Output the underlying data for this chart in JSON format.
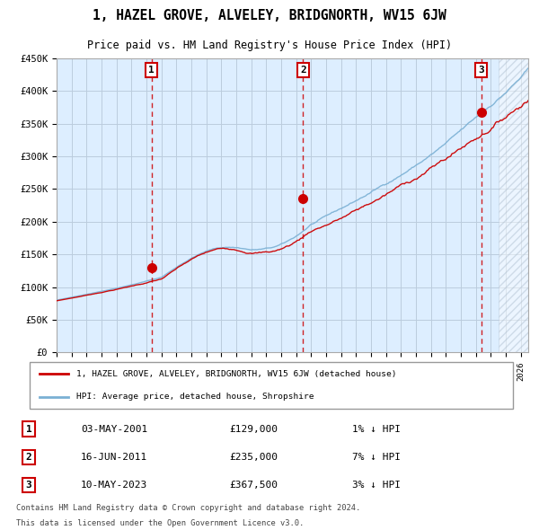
{
  "title": "1, HAZEL GROVE, ALVELEY, BRIDGNORTH, WV15 6JW",
  "subtitle": "Price paid vs. HM Land Registry's House Price Index (HPI)",
  "x_start_year": 1995,
  "x_end_year": 2026.5,
  "y_min": 0,
  "y_max": 450000,
  "y_ticks": [
    0,
    50000,
    100000,
    150000,
    200000,
    250000,
    300000,
    350000,
    400000,
    450000
  ],
  "y_tick_labels": [
    "£0",
    "£50K",
    "£100K",
    "£150K",
    "£200K",
    "£250K",
    "£300K",
    "£350K",
    "£400K",
    "£450K"
  ],
  "transactions": [
    {
      "label": "1",
      "date": "03-MAY-2001",
      "year": 2001.34,
      "price": 129000,
      "pct": "1%",
      "dir": "↓"
    },
    {
      "label": "2",
      "date": "16-JUN-2011",
      "year": 2011.46,
      "price": 235000,
      "pct": "7%",
      "dir": "↓"
    },
    {
      "label": "3",
      "date": "10-MAY-2023",
      "year": 2023.36,
      "price": 367500,
      "pct": "3%",
      "dir": "↓"
    }
  ],
  "legend_line1": "1, HAZEL GROVE, ALVELEY, BRIDGNORTH, WV15 6JW (detached house)",
  "legend_line2": "HPI: Average price, detached house, Shropshire",
  "footer1": "Contains HM Land Registry data © Crown copyright and database right 2024.",
  "footer2": "This data is licensed under the Open Government Licence v3.0.",
  "line_color_red": "#cc0000",
  "line_color_blue": "#7ab0d4",
  "bg_color": "#ddeeff",
  "hatch_color": "#aabbcc",
  "grid_color": "#bbccdd",
  "dot_color": "#cc0000",
  "box_color_red": "#cc0000",
  "box_fill": "#ffffff"
}
